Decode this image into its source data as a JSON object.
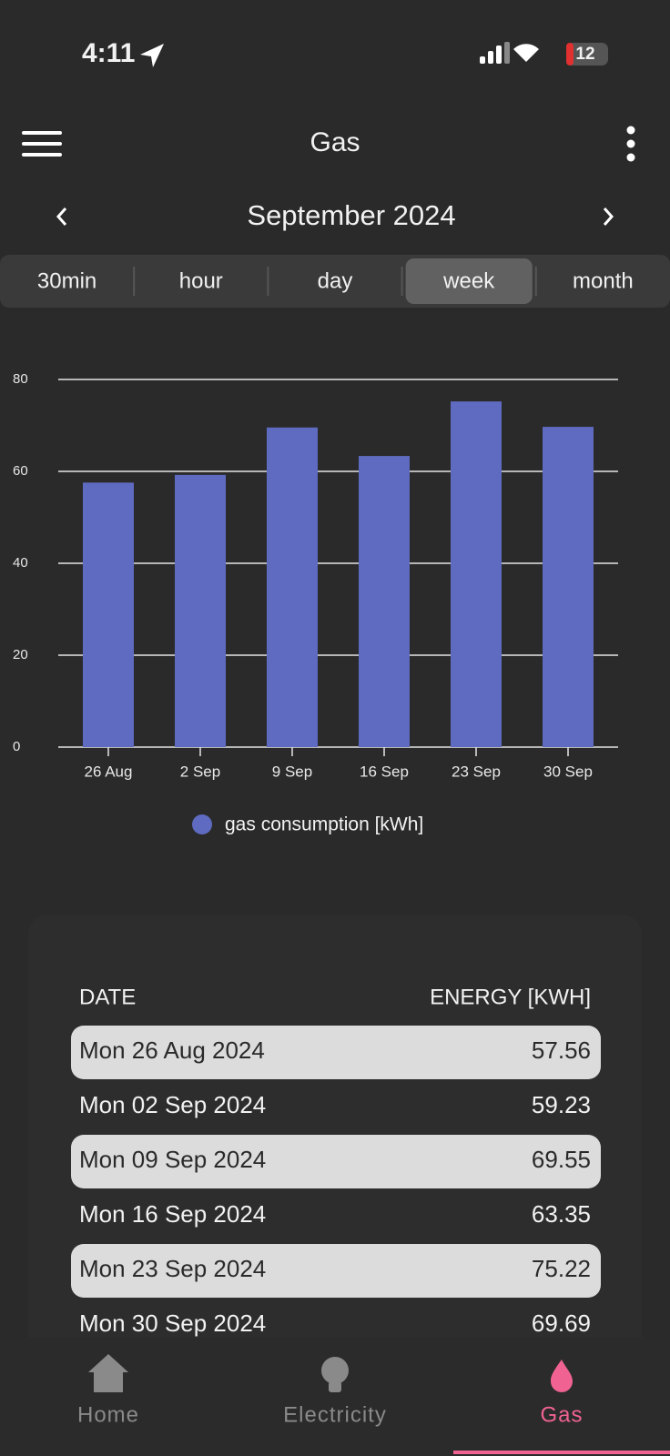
{
  "status_bar": {
    "time": "4:11",
    "battery": "12"
  },
  "header": {
    "title": "Gas",
    "period": "September 2024"
  },
  "tabs": {
    "items": [
      "30min",
      "hour",
      "day",
      "week",
      "month"
    ],
    "active": "week"
  },
  "chart_data": {
    "type": "bar",
    "categories": [
      "26 Aug",
      "2 Sep",
      "9 Sep",
      "16 Sep",
      "23 Sep",
      "30 Sep"
    ],
    "series": [
      {
        "name": "gas consumption [kWh]",
        "color": "#5f6bc0",
        "values": [
          57.56,
          59.23,
          69.55,
          63.35,
          75.22,
          69.69
        ]
      }
    ],
    "ylim": [
      0,
      80
    ],
    "yticks": [
      0,
      20,
      40,
      60,
      80
    ],
    "grid": true
  },
  "table": {
    "columns": [
      "DATE",
      "ENERGY [KWH]"
    ],
    "dates": [
      "Mon 26 Aug 2024",
      "Mon 02 Sep 2024",
      "Mon 09 Sep 2024",
      "Mon 16 Sep 2024",
      "Mon 23 Sep 2024",
      "Mon 30 Sep 2024"
    ]
  },
  "nav": {
    "items": [
      "Home",
      "Electricity",
      "Gas"
    ],
    "active": "Gas"
  }
}
